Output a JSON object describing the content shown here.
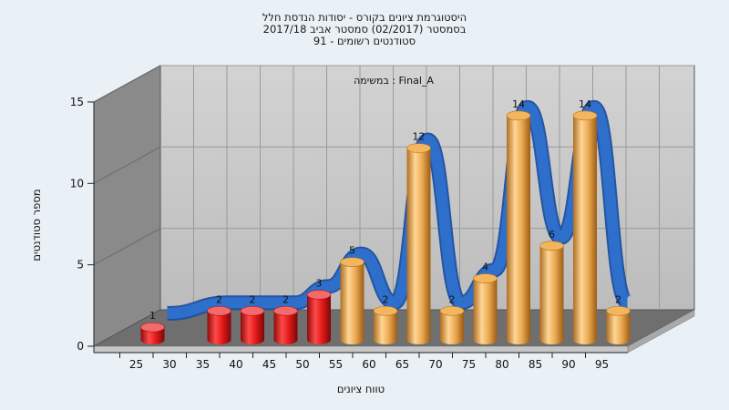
{
  "chart_data": {
    "type": "bar",
    "title_lines": [
      "היסטוגרמת ציונים בקורס - יסודות הנדסת חלל",
      "בסמסטר  (02/2017)  סמסטר אביב 2017/18",
      "סטודנטים רשומים - 91"
    ],
    "annotation": "במשימה : Final_A",
    "xlabel": "טווח ציונים",
    "ylabel": "מספר סטודנטים",
    "x_ticks": [
      "25",
      "30",
      "35",
      "40",
      "45",
      "50",
      "55",
      "60",
      "65",
      "70",
      "75",
      "80",
      "85",
      "90",
      "95"
    ],
    "y_ticks": [
      "0",
      "5",
      "10",
      "15"
    ],
    "ylim": [
      0,
      15
    ],
    "categories": [
      "25",
      "35",
      "40",
      "45",
      "50",
      "55",
      "60",
      "65",
      "70",
      "75",
      "80",
      "85",
      "90",
      "95"
    ],
    "values": [
      1,
      2,
      2,
      2,
      3,
      5,
      2,
      12,
      2,
      4,
      14,
      6,
      14,
      2
    ],
    "labels": [
      "1",
      "2",
      "2",
      "2",
      "3",
      "5",
      "2",
      "12",
      "2",
      "4",
      "14",
      "6",
      "14",
      "2"
    ],
    "bar_colors": [
      "#e52323",
      "#e52323",
      "#e52323",
      "#e52323",
      "#e52323",
      "#e8a84a",
      "#e8a84a",
      "#e8a84a",
      "#e8a84a",
      "#e8a84a",
      "#e8a84a",
      "#e8a84a",
      "#e8a84a",
      "#e8a84a"
    ],
    "curve_color": "#2e6fcc",
    "grid": true
  }
}
